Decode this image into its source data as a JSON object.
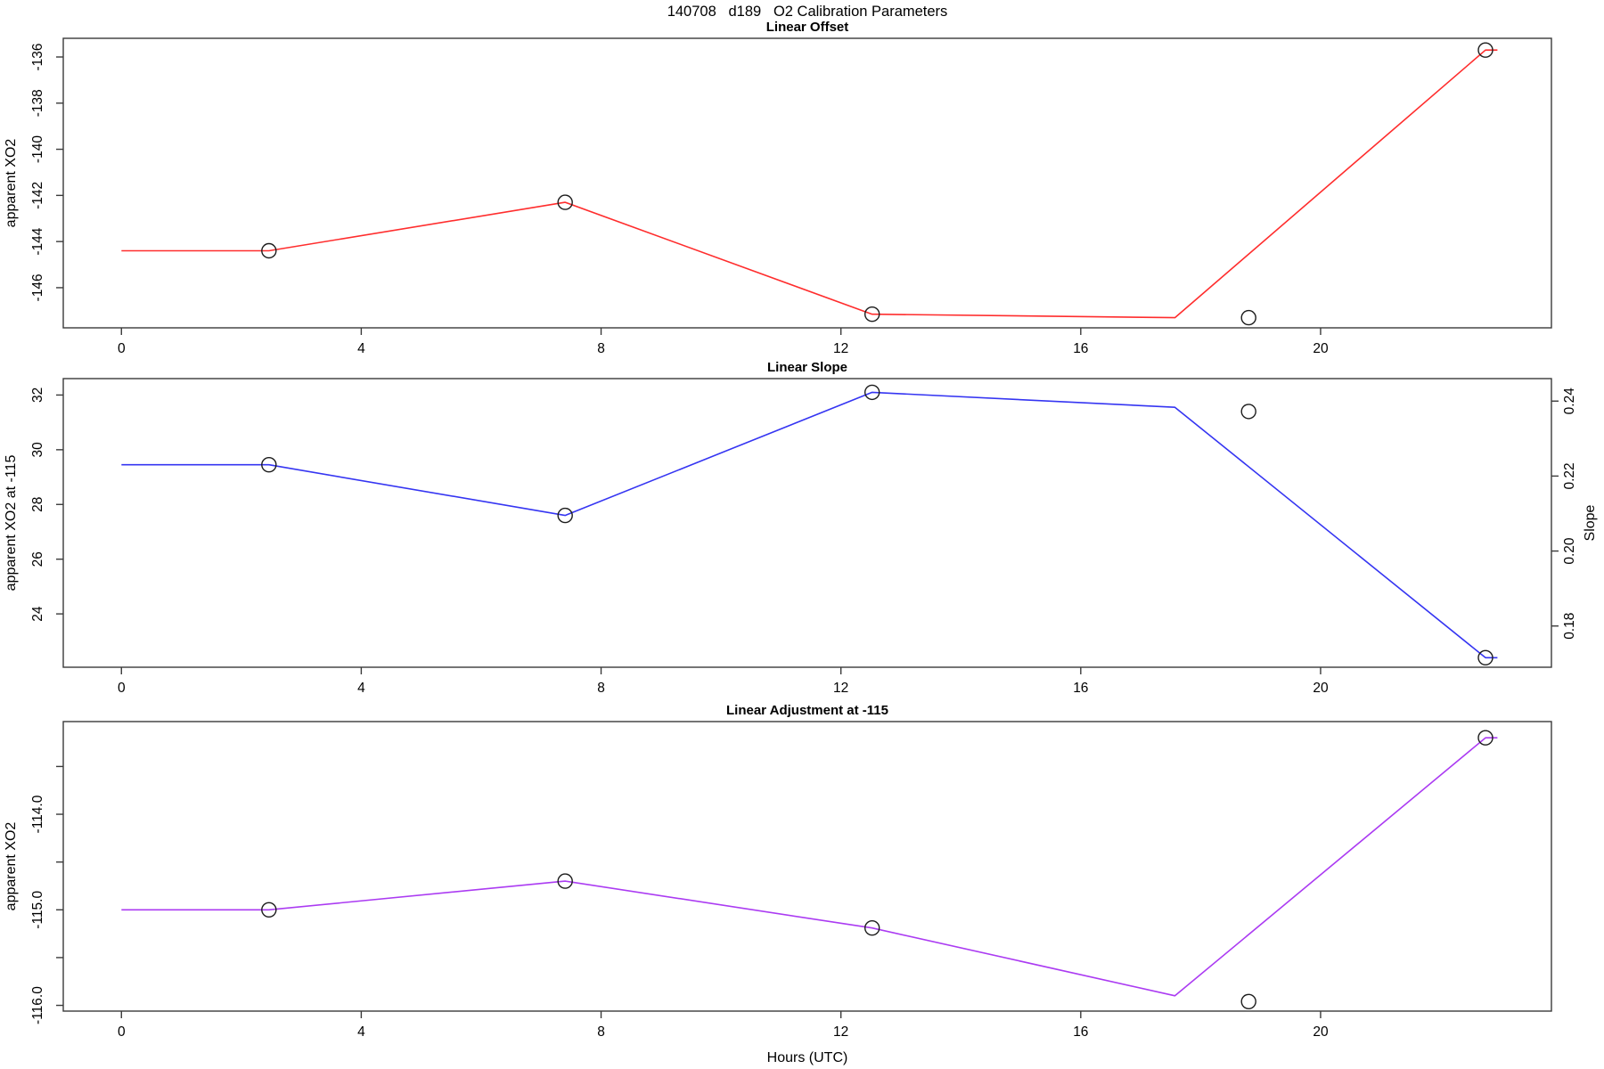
{
  "title": "140708   d189   O2 Calibration Parameters",
  "xlabel": "Hours (UTC)",
  "x_ticks": [
    0,
    4,
    8,
    12,
    16,
    20
  ],
  "frame_color": "#3a3a3a",
  "point_color": "#1c1c1c",
  "chart_data": [
    {
      "type": "line",
      "title": "Linear Offset",
      "ylabel": "apparent XO2",
      "color": "#ff2d2d",
      "xlim": [
        -0.97,
        23.85
      ],
      "ylim": [
        -147.74,
        -135.19
      ],
      "grid": false,
      "yticks": [
        {
          "v": -136,
          "label": "-136"
        },
        {
          "v": -138,
          "label": "-138"
        },
        {
          "v": -140,
          "label": "-140"
        },
        {
          "v": -142,
          "label": "-142"
        },
        {
          "v": -144,
          "label": "-144"
        },
        {
          "v": -146,
          "label": "-146"
        }
      ],
      "line": [
        [
          0,
          -144.4
        ],
        [
          2.46,
          -144.4
        ],
        [
          7.4,
          -142.3
        ],
        [
          12.52,
          -147.15
        ],
        [
          17.57,
          -147.3
        ],
        [
          22.75,
          -135.7
        ],
        [
          22.95,
          -135.7
        ]
      ],
      "points": [
        [
          2.46,
          -144.4
        ],
        [
          7.4,
          -142.3
        ],
        [
          12.52,
          -147.15
        ],
        [
          22.75,
          -135.7
        ]
      ],
      "isolated_points": [
        [
          18.8,
          -147.3
        ]
      ]
    },
    {
      "type": "line",
      "title": "Linear Slope",
      "ylabel": "apparent XO2 at -115",
      "ylabel_right": "Slope",
      "color": "#3535f2",
      "xlim": [
        -0.97,
        23.85
      ],
      "ylim": [
        22.05,
        32.6
      ],
      "ylim_right": [
        0.169,
        0.246
      ],
      "grid": false,
      "yticks": [
        {
          "v": 32,
          "label": "32"
        },
        {
          "v": 30,
          "label": "30"
        },
        {
          "v": 28,
          "label": "28"
        },
        {
          "v": 26,
          "label": "26"
        },
        {
          "v": 24,
          "label": "24"
        }
      ],
      "yticks_right": [
        {
          "v": 0.24,
          "label": "0.24"
        },
        {
          "v": 0.22,
          "label": "0.22"
        },
        {
          "v": 0.2,
          "label": "0.20"
        },
        {
          "v": 0.18,
          "label": "0.18"
        }
      ],
      "line": [
        [
          0,
          29.45
        ],
        [
          2.46,
          29.45
        ],
        [
          7.4,
          27.6
        ],
        [
          12.52,
          32.1
        ],
        [
          17.57,
          31.55
        ],
        [
          22.75,
          22.4
        ],
        [
          22.95,
          22.4
        ]
      ],
      "points": [
        [
          2.46,
          29.45
        ],
        [
          7.4,
          27.6
        ],
        [
          12.52,
          32.1
        ],
        [
          22.75,
          22.4
        ]
      ],
      "isolated_points": [
        [
          18.8,
          31.4
        ]
      ],
      "slope_scale_values": {
        "line": [
          0.223,
          0.223,
          0.21,
          0.242,
          0.238,
          0.171,
          0.171
        ],
        "isolated": 0.238
      }
    },
    {
      "type": "line",
      "title": "Linear Adjustment at -115",
      "ylabel": "apparent XO2",
      "color": "#ab3bf2",
      "xlim": [
        -0.97,
        23.85
      ],
      "ylim": [
        -116.06,
        -113.03
      ],
      "grid": false,
      "yticks": [
        {
          "v": -114.0,
          "label": "-114.0"
        },
        {
          "v": -115.0,
          "label": "-115.0"
        },
        {
          "v": -116.0,
          "label": "-116.0"
        }
      ],
      "minor_yticks": [
        -113.5,
        -114.5,
        -115.5
      ],
      "line": [
        [
          0,
          -115.0
        ],
        [
          2.46,
          -115.0
        ],
        [
          7.4,
          -114.7
        ],
        [
          12.52,
          -115.19
        ],
        [
          17.57,
          -115.9
        ],
        [
          22.75,
          -113.2
        ],
        [
          22.95,
          -113.2
        ]
      ],
      "points": [
        [
          2.46,
          -115.0
        ],
        [
          7.4,
          -114.7
        ],
        [
          12.52,
          -115.19
        ],
        [
          22.75,
          -113.2
        ]
      ],
      "isolated_points": [
        [
          18.8,
          -115.96
        ]
      ]
    }
  ]
}
